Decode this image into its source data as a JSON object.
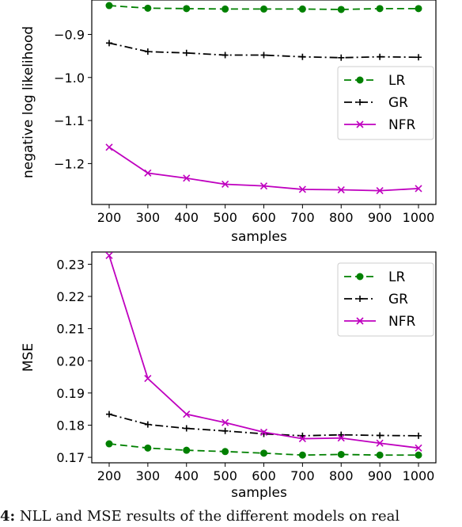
{
  "chart_data": [
    {
      "type": "line",
      "xlabel": "samples",
      "ylabel": "negative log likelihood",
      "x": [
        200,
        300,
        400,
        500,
        600,
        700,
        800,
        900,
        1000
      ],
      "yticks": [
        "−0.9",
        "−1.0",
        "−1.1",
        "−1.2"
      ],
      "ytick_values": [
        -0.9,
        -1.0,
        -1.1,
        -1.2
      ],
      "ylim": [
        -1.295,
        -0.82
      ],
      "legend_position": "center-right",
      "series": [
        {
          "name": "LR",
          "color": "#008000",
          "style": "dashed",
          "marker": "circle",
          "values": [
            -0.833,
            -0.839,
            -0.84,
            -0.841,
            -0.841,
            -0.841,
            -0.842,
            -0.84,
            -0.84
          ]
        },
        {
          "name": "GR",
          "color": "#000000",
          "style": "dashdot",
          "marker": "plus",
          "values": [
            -0.92,
            -0.94,
            -0.943,
            -0.948,
            -0.948,
            -0.952,
            -0.954,
            -0.952,
            -0.953
          ]
        },
        {
          "name": "NFR",
          "color": "#bf00bf",
          "style": "solid",
          "marker": "x",
          "values": [
            -1.162,
            -1.222,
            -1.234,
            -1.248,
            -1.252,
            -1.26,
            -1.261,
            -1.263,
            -1.258
          ]
        }
      ]
    },
    {
      "type": "line",
      "xlabel": "samples",
      "ylabel": "MSE",
      "x": [
        200,
        300,
        400,
        500,
        600,
        700,
        800,
        900,
        1000
      ],
      "yticks": [
        "0.17",
        "0.18",
        "0.19",
        "0.20",
        "0.21",
        "0.22",
        "0.23"
      ],
      "ytick_values": [
        0.17,
        0.18,
        0.19,
        0.2,
        0.21,
        0.22,
        0.23
      ],
      "ylim": [
        0.1683,
        0.2338
      ],
      "legend_position": "top-right",
      "series": [
        {
          "name": "LR",
          "color": "#008000",
          "style": "dashed",
          "marker": "circle",
          "values": [
            0.1742,
            0.1729,
            0.1722,
            0.1718,
            0.1713,
            0.1707,
            0.1709,
            0.1707,
            0.1707
          ]
        },
        {
          "name": "GR",
          "color": "#000000",
          "style": "dashdot",
          "marker": "plus",
          "values": [
            0.1834,
            0.1802,
            0.179,
            0.1782,
            0.1773,
            0.1767,
            0.177,
            0.1768,
            0.1767
          ]
        },
        {
          "name": "NFR",
          "color": "#bf00bf",
          "style": "solid",
          "marker": "x",
          "values": [
            0.2327,
            0.1945,
            0.1834,
            0.1808,
            0.1778,
            0.1758,
            0.176,
            0.1744,
            0.1729
          ]
        }
      ]
    }
  ],
  "caption": {
    "prefix": "4:",
    "text": "NLL and MSE results of the different models on real"
  }
}
